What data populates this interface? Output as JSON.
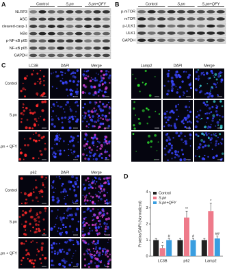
{
  "panels": {
    "A": {
      "label": "A",
      "groups": [
        "Control",
        "S.pn",
        "S.pn+QFY"
      ],
      "rows": [
        "NLRP3",
        "ASC",
        "cleaved-casp-1",
        "IκBα",
        "p-NF-κB p65",
        "NF-κB p65",
        "GAPDH"
      ]
    },
    "B": {
      "label": "B",
      "groups": [
        "Control",
        "S.pn",
        "S.pn+QFY"
      ],
      "rows": [
        "p-mTOR",
        "mTOR",
        "p-ULK1",
        "ULK1",
        "GAPDH"
      ]
    },
    "C": {
      "label": "C",
      "left": {
        "columns": [
          "LC3B",
          "DAPI",
          "Merge"
        ],
        "rows": [
          "Control",
          "S.pn",
          "S.pn + QFY"
        ]
      },
      "right": {
        "columns": [
          "Lamp2",
          "DAPI",
          "Merge"
        ]
      },
      "bottom": {
        "columns": [
          "p62",
          "DAPI",
          "Merge"
        ],
        "rows": [
          "Control",
          "S.pn",
          "S.pn + QFY"
        ]
      }
    },
    "D": {
      "label": "D"
    }
  },
  "chart_data": {
    "type": "bar",
    "ylabel": "Proteins/DAPI (Normalized)",
    "categories": [
      "LC3B",
      "p62",
      "Lamp2"
    ],
    "ylim": [
      0,
      4
    ],
    "yticks": [
      0,
      1,
      2,
      3,
      4
    ],
    "legend": "upper left",
    "series": [
      {
        "name": "Control",
        "color": "#222222",
        "values": [
          1,
          1,
          1
        ],
        "errors": [
          0.1,
          0.1,
          0.1
        ]
      },
      {
        "name": "S.pn",
        "color": "#ee7a8a",
        "values": [
          0.5,
          2.4,
          2.8
        ],
        "errors": [
          0.15,
          0.4,
          0.5
        ],
        "markers": [
          "*",
          "**",
          "*"
        ]
      },
      {
        "name": "S.pn+QFY",
        "color": "#3a9ee0",
        "values": [
          1,
          1,
          1.1
        ],
        "errors": [
          0.1,
          0.1,
          0.15
        ],
        "markers": [
          "#",
          "#",
          "##"
        ]
      }
    ]
  }
}
